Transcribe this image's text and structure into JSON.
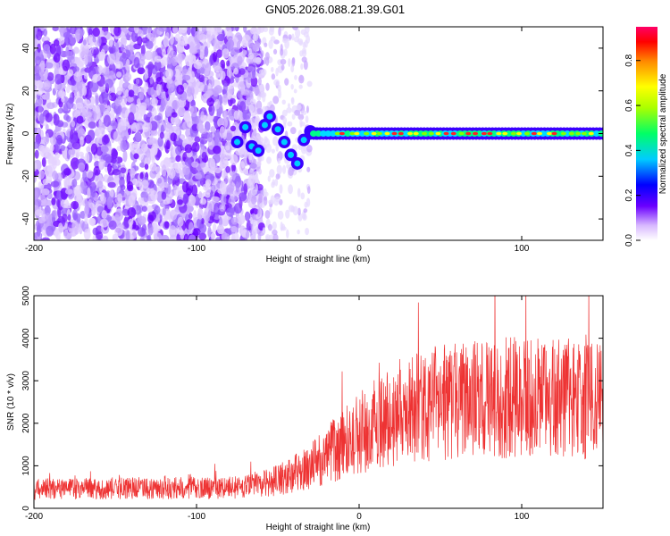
{
  "title": "GN05.2026.088.21.39.G01",
  "chart_data": [
    {
      "type": "heatmap",
      "xlabel": "Height of straight line (km)",
      "ylabel": "Frequency (Hz)",
      "xlim": [
        -200,
        150
      ],
      "ylim": [
        -50,
        50
      ],
      "xticks": [
        "-200",
        "-100",
        "0",
        "100"
      ],
      "xtick_values": [
        -200,
        -100,
        0,
        100
      ],
      "yticks": [
        "-40",
        "-20",
        "0",
        "20",
        "40"
      ],
      "ytick_values": [
        -40,
        -20,
        0,
        20,
        40
      ],
      "colorbar": {
        "label": "Normalized spectral amplitude",
        "range": [
          0,
          0.95
        ],
        "ticks": [
          "0.0",
          "0.2",
          "0.4",
          "0.6",
          "0.8"
        ],
        "tick_values": [
          0.0,
          0.2,
          0.4,
          0.6,
          0.8
        ]
      },
      "description_values": {
        "noise_region_x": [
          -200,
          -65
        ],
        "ridge_start_x": -70,
        "ridge_frequency_hz": 0
      }
    },
    {
      "type": "line",
      "xlabel": "Height of straight line (km)",
      "ylabel": "SNR (10 * v/v)",
      "xlim": [
        -200,
        150
      ],
      "ylim": [
        0,
        5000
      ],
      "xticks": [
        "-200",
        "-100",
        "0",
        "100"
      ],
      "xtick_values": [
        -200,
        -100,
        0,
        100
      ],
      "yticks": [
        "0",
        "1000",
        "2000",
        "3000",
        "4000",
        "5000"
      ],
      "ytick_values": [
        0,
        1000,
        2000,
        3000,
        4000,
        5000
      ],
      "series_color": "#ee3333",
      "trend_points": {
        "x": [
          -200,
          -150,
          -100,
          -70,
          -50,
          -30,
          -10,
          10,
          30,
          50,
          80,
          110,
          130,
          150
        ],
        "y": [
          450,
          470,
          480,
          500,
          650,
          1000,
          1500,
          2000,
          2300,
          2500,
          2600,
          2600,
          2550,
          2500
        ]
      }
    }
  ]
}
